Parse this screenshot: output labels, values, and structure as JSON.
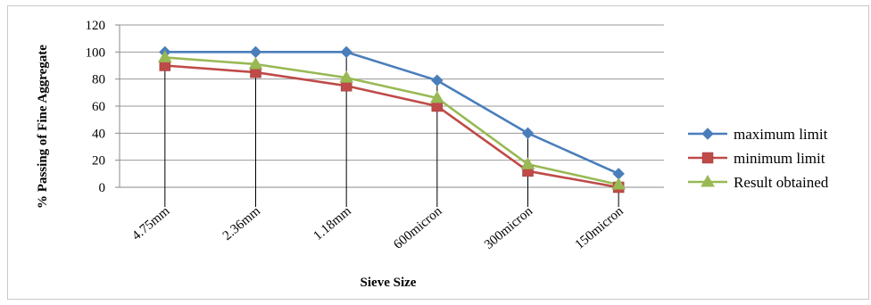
{
  "chart_data": {
    "type": "line",
    "title": "",
    "xlabel": "Sieve Size",
    "ylabel": "% Passing of Fine Aggregate",
    "categories": [
      "4.75mm",
      "2.36mm",
      "1.18mm",
      "600micron",
      "300micron",
      "150micron"
    ],
    "ylim": [
      0,
      120
    ],
    "yticks": [
      0,
      20,
      40,
      60,
      80,
      100,
      120
    ],
    "grid": true,
    "legend_position": "right",
    "series": [
      {
        "name": "maximum limit",
        "color": "#4a7ebb",
        "marker": "diamond",
        "values": [
          100,
          100,
          100,
          79,
          40,
          10
        ]
      },
      {
        "name": "minimum limit",
        "color": "#be4b48",
        "marker": "square",
        "values": [
          90,
          85,
          75,
          60,
          12,
          0
        ]
      },
      {
        "name": "Result obtained",
        "color": "#98b954",
        "marker": "triangle",
        "values": [
          96,
          91,
          81,
          66,
          17,
          2
        ]
      }
    ]
  }
}
